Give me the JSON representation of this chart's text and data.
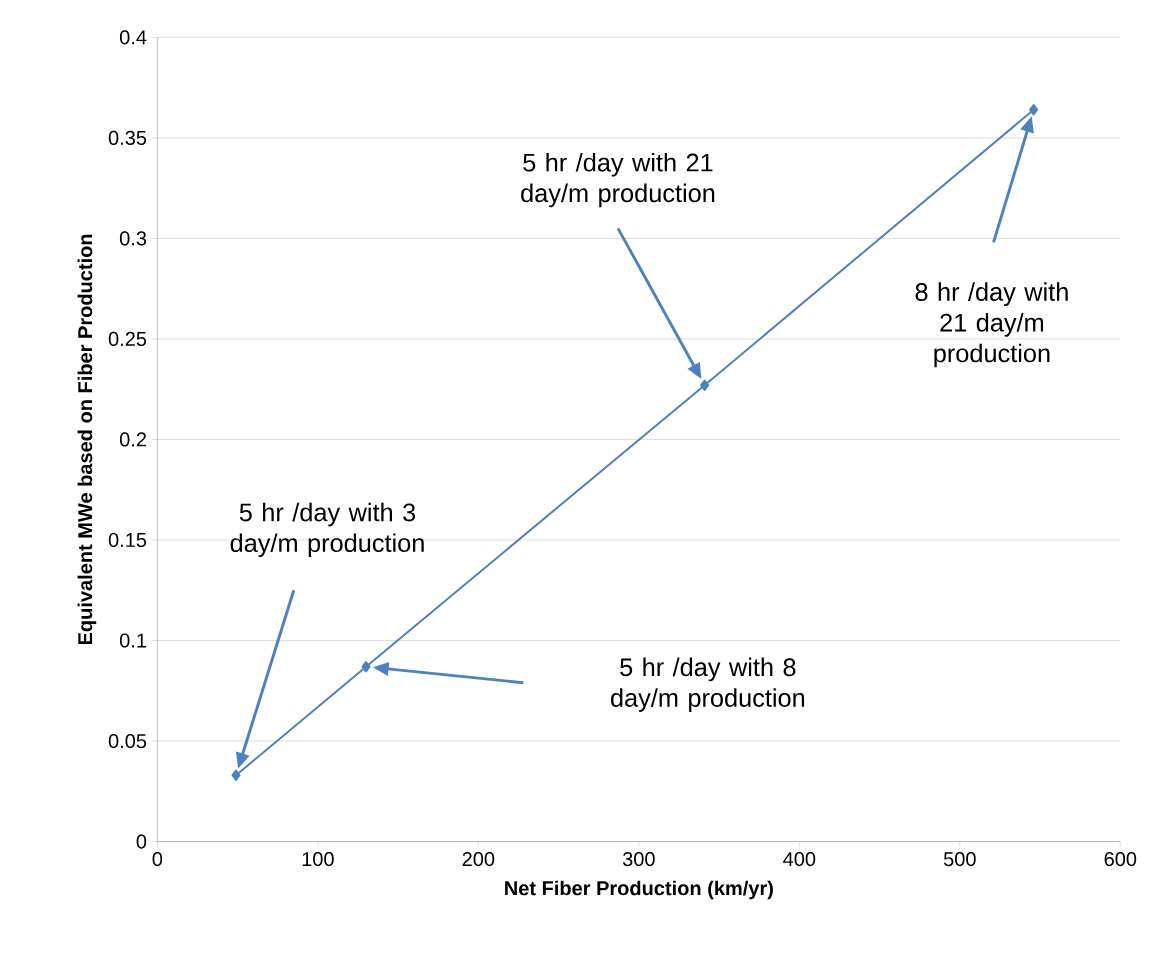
{
  "chart_data": {
    "type": "line",
    "xlabel": "Net Fiber Production (km/yr)",
    "ylabel": "Equivalent MWe based on Fiber Production",
    "x": [
      49,
      130,
      341,
      546
    ],
    "series": [
      {
        "color": "#4f81bd",
        "values": [
          0.033,
          0.087,
          0.227,
          0.364
        ]
      }
    ],
    "marker": "diamond",
    "line_style": "solid",
    "grid": "y",
    "xlim": [
      0,
      600
    ],
    "xticks": [
      0,
      100,
      200,
      300,
      400,
      500,
      600
    ],
    "ylim": [
      0,
      0.4
    ],
    "yticks": [
      0,
      0.05,
      0.1,
      0.15,
      0.2,
      0.25,
      0.3,
      0.35,
      0.4
    ],
    "annotations": [
      "5 hr /day with 3 day/m production",
      "5 hr /day with 8 day/m production",
      "5 hr /day with 21 day/m production",
      "8 hr /day with 21 day/m production"
    ]
  }
}
